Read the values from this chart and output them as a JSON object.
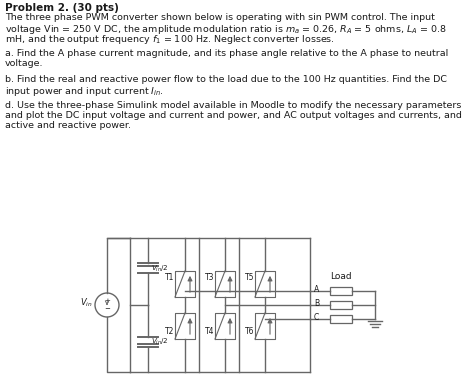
{
  "title_text": "Problem 2. (30 pts)",
  "p1_line1": "The three phase PWM converter shown below is operating with sin PWM control. The input",
  "p1_line2": "voltage Vin = 250 V DC, the amplitude modulation ratio is ",
  "p1_line2b": "= 0.26, ",
  "p1_line2c": "= 5 ohms, ",
  "p1_line2d": "= 0.8",
  "p1_line3": "mH, and the output frequency ",
  "p1_line3b": " = 100 Hz. Neglect converter losses.",
  "p2": "a. Find the A phase current magnitude, and its phase angle relative to the A phase to neutral\nvoltage.",
  "p3_line1": "b. Find the real and reactive power flow to the load due to the 100 Hz quantities. Find the DC",
  "p3_line2": "input power and input current ",
  "p4_line1": "d. Use the three-phase Simulink model available in Moodle to modify the necessary parameters",
  "p4_line2": "and plot the DC input voltage and current and power, and AC output voltages and currents, and",
  "p4_line3": "active and reactive power.",
  "bg_color": "#ffffff",
  "text_color": "#1a1a1a",
  "circuit_color": "#666666",
  "lw": 1.0,
  "font_size_title": 7.5,
  "font_size_body": 6.8,
  "font_size_circuit": 5.8
}
